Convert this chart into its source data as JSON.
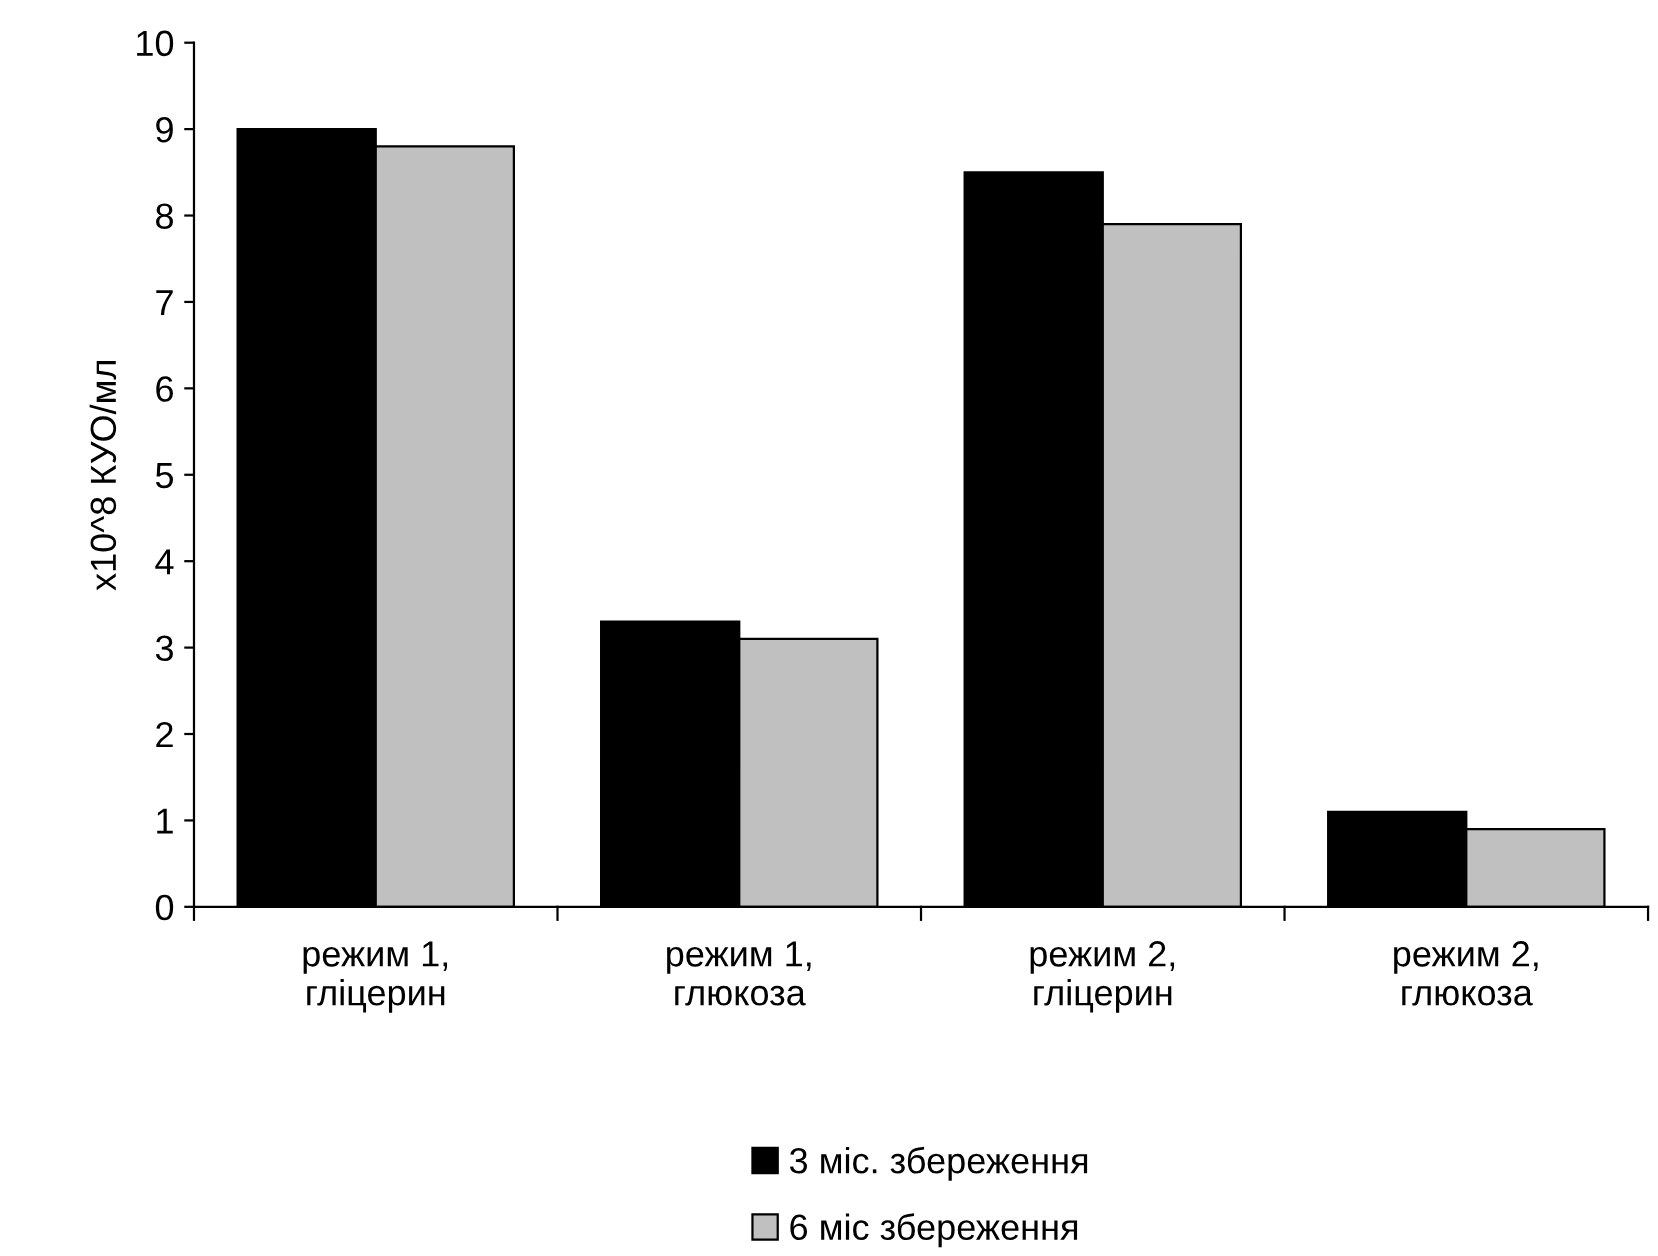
{
  "chart_data": {
    "type": "bar",
    "ylabel": "x10^8 КУО/мл",
    "categories": [
      "режим 1,\nгліцерин",
      "режим 1,\nглюкоза",
      "режим 2,\nгліцерин",
      "режим 2,\nглюкоза"
    ],
    "series": [
      {
        "name": "3 міс. збереження",
        "color": "#000000",
        "values": [
          9.0,
          3.3,
          8.5,
          1.1
        ]
      },
      {
        "name": "6 міс збереження",
        "color": "#c0c0c0",
        "values": [
          8.8,
          3.1,
          7.9,
          0.9
        ]
      }
    ],
    "ylim": [
      0,
      10
    ],
    "yticks": [
      0,
      1,
      2,
      3,
      4,
      5,
      6,
      7,
      8,
      9,
      10
    ],
    "grid": false,
    "legend": "bottom"
  }
}
